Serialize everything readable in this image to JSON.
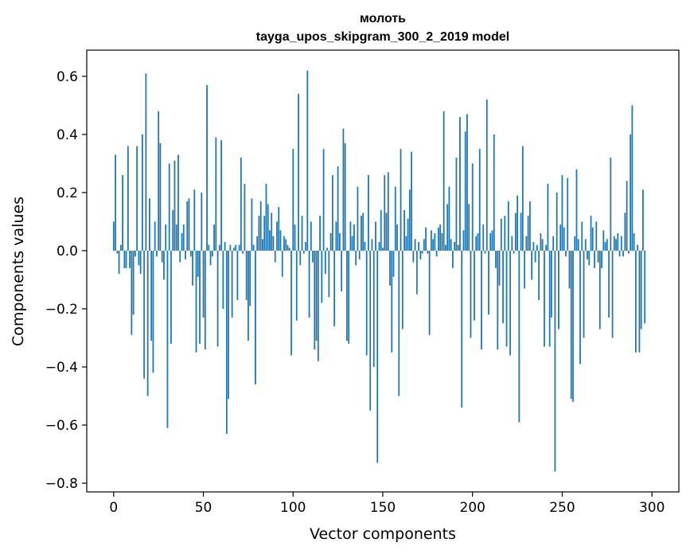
{
  "chart_data": {
    "type": "bar",
    "title_line1": "молоть",
    "title_line2": "tayga_upos_skipgram_300_2_2019 model",
    "xlabel": "Vector components",
    "ylabel": "Components values",
    "xlim": [
      -15,
      315
    ],
    "ylim": [
      -0.83,
      0.69
    ],
    "xticks": [
      0,
      50,
      100,
      150,
      200,
      250,
      300
    ],
    "xtick_labels": [
      "0",
      "50",
      "100",
      "150",
      "200",
      "250",
      "300"
    ],
    "yticks": [
      -0.8,
      -0.6,
      -0.4,
      -0.2,
      0.0,
      0.2,
      0.4,
      0.6
    ],
    "ytick_labels": [
      "−0.8",
      "−0.6",
      "−0.4",
      "−0.2",
      "0.0",
      "0.2",
      "0.4",
      "0.6"
    ],
    "bar_color": "#1f77b4",
    "values": [
      0.1,
      0.33,
      -0.01,
      -0.08,
      0.02,
      0.26,
      -0.06,
      -0.06,
      0.36,
      -0.06,
      -0.29,
      -0.22,
      -0.02,
      0.36,
      -0.05,
      -0.08,
      0.4,
      -0.44,
      0.61,
      -0.5,
      0.18,
      -0.31,
      -0.42,
      0.1,
      -0.02,
      0.48,
      0.37,
      -0.04,
      -0.1,
      0.09,
      -0.61,
      0.3,
      -0.32,
      0.14,
      0.31,
      0.09,
      0.33,
      -0.04,
      0.06,
      0.09,
      -0.03,
      0.17,
      0.18,
      -0.02,
      -0.12,
      0.21,
      -0.35,
      -0.09,
      -0.32,
      0.2,
      -0.23,
      -0.34,
      0.57,
      0.02,
      -0.05,
      -0.02,
      0.09,
      0.39,
      -0.33,
      0.02,
      0.38,
      -0.2,
      0.03,
      -0.63,
      -0.51,
      0.02,
      -0.23,
      0.01,
      0.02,
      -0.17,
      0.02,
      0.32,
      -0.01,
      0.23,
      -0.17,
      -0.31,
      -0.19,
      0.18,
      0.02,
      -0.46,
      0.05,
      0.12,
      0.17,
      0.04,
      0.12,
      0.23,
      0.16,
      0.07,
      0.13,
      0.05,
      -0.04,
      0.1,
      0.15,
      0.07,
      -0.09,
      0.05,
      0.04,
      0.02,
      0.01,
      -0.36,
      0.35,
      0.09,
      -0.24,
      0.54,
      -0.05,
      0.12,
      -0.01,
      0.03,
      0.62,
      -0.23,
      0.1,
      -0.04,
      -0.34,
      -0.31,
      -0.38,
      0.12,
      -0.18,
      0.35,
      -0.08,
      0.01,
      -0.16,
      0.06,
      0.26,
      -0.26,
      0.1,
      0.29,
      0.06,
      -0.14,
      0.42,
      0.37,
      -0.31,
      -0.32,
      0.1,
      0.05,
      0.09,
      -0.05,
      0.22,
      -0.03,
      0.12,
      0.13,
      0.03,
      -0.36,
      0.26,
      -0.55,
      0.04,
      -0.4,
      0.1,
      -0.73,
      0.03,
      0.14,
      0.01,
      0.26,
      0.13,
      0.27,
      -0.12,
      -0.35,
      -0.09,
      0.22,
      0.09,
      -0.5,
      0.35,
      -0.27,
      0.14,
      0.05,
      0.11,
      0.21,
      0.34,
      -0.04,
      0.04,
      -0.15,
      0.03,
      -0.03,
      -0.01,
      0.04,
      0.08,
      -0.01,
      -0.29,
      0.07,
      0.04,
      0.06,
      -0.02,
      0.08,
      0.09,
      0.06,
      0.48,
      0.02,
      0.16,
      0.22,
      0.04,
      -0.06,
      0.03,
      0.32,
      0.02,
      0.46,
      -0.54,
      0.07,
      0.41,
      0.47,
      0.16,
      -0.3,
      0.3,
      -0.24,
      0.05,
      0.06,
      0.35,
      -0.34,
      0.09,
      -0.01,
      0.52,
      -0.22,
      0.06,
      0.07,
      0.4,
      -0.06,
      -0.34,
      -0.12,
      0.11,
      -0.25,
      0.12,
      -0.33,
      0.17,
      -0.36,
      0.05,
      -0.01,
      0.13,
      0.19,
      -0.59,
      0.13,
      0.36,
      -0.13,
      0.05,
      0.12,
      0.17,
      -0.1,
      0.03,
      -0.04,
      0.02,
      -0.17,
      0.06,
      0.04,
      -0.33,
      0.02,
      0.23,
      -0.33,
      -0.23,
      0.05,
      -0.76,
      0.2,
      -0.27,
      0.09,
      0.26,
      0.08,
      -0.02,
      0.25,
      -0.13,
      -0.51,
      -0.52,
      0.05,
      0.28,
      0.04,
      -0.39,
      0.1,
      -0.3,
      0.04,
      -0.03,
      -0.05,
      0.12,
      0.08,
      -0.06,
      0.1,
      -0.04,
      -0.27,
      -0.06,
      0.07,
      0.03,
      0.04,
      -0.23,
      0.32,
      -0.3,
      0.05,
      0.04,
      0.06,
      -0.02,
      0.05,
      -0.02,
      0.13,
      0.24,
      -0.01,
      0.4,
      0.5,
      0.06,
      -0.35,
      0.02,
      -0.35,
      -0.27,
      0.21,
      -0.25
    ]
  }
}
